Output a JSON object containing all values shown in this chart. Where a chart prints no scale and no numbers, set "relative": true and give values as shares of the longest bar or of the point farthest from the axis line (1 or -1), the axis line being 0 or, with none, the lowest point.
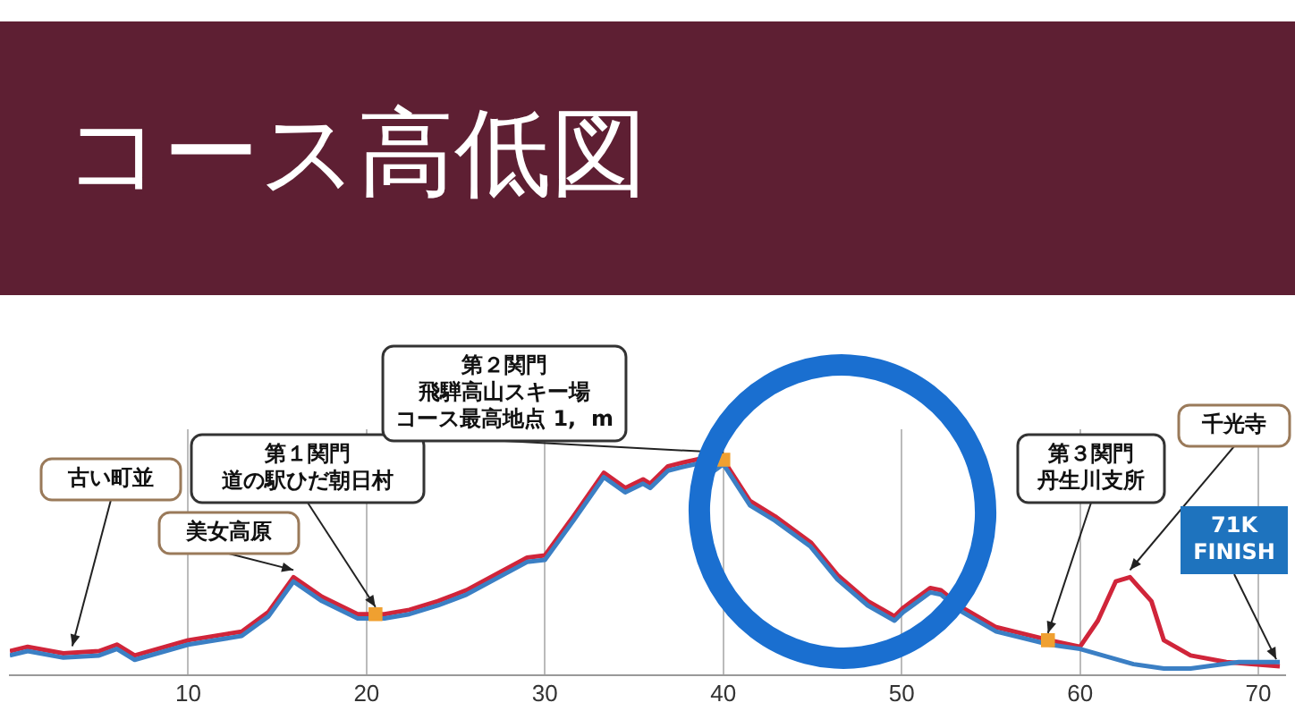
{
  "chart_data": {
    "type": "line",
    "title": "コース高低図",
    "relative": true,
    "xlim": [
      0,
      71.5
    ],
    "xticks": [
      10,
      20,
      30,
      40,
      50,
      60,
      70
    ],
    "grid": "x",
    "legend": false,
    "marker": "none",
    "line_style": "solid",
    "series": [
      {
        "color": "#3b7fc4",
        "x": [
          0,
          1,
          3,
          5,
          6,
          7,
          10,
          13,
          14.5,
          15.9,
          17.5,
          19.5,
          21,
          22.4,
          24,
          25.6,
          29,
          30,
          31.6,
          33.3,
          34.5,
          35.5,
          35.9,
          36.9,
          37.9,
          39,
          39.5,
          40,
          41.5,
          42.9,
          44.9,
          46.4,
          48.1,
          49.6,
          50.1,
          51.6,
          52.2,
          53.4,
          55.3,
          58.3,
          60,
          63,
          64.7,
          66.2,
          68.9,
          71.2
        ],
        "values": [
          0.09,
          0.11,
          0.08,
          0.09,
          0.12,
          0.07,
          0.14,
          0.18,
          0.27,
          0.43,
          0.34,
          0.26,
          0.26,
          0.28,
          0.32,
          0.37,
          0.52,
          0.53,
          0.71,
          0.91,
          0.84,
          0.88,
          0.86,
          0.94,
          0.96,
          0.98,
          0.94,
          0.97,
          0.78,
          0.71,
          0.59,
          0.44,
          0.32,
          0.25,
          0.29,
          0.38,
          0.37,
          0.29,
          0.2,
          0.14,
          0.12,
          0.05,
          0.03,
          0.03,
          0.06,
          0.06
        ]
      },
      {
        "color": "#d0253a",
        "x": [
          0,
          1,
          3,
          5,
          6,
          7,
          10,
          13,
          14.5,
          15.9,
          17.5,
          19.5,
          21,
          22.4,
          24,
          25.6,
          29,
          30,
          31.6,
          33.3,
          34.5,
          35.5,
          35.9,
          36.9,
          37.9,
          39,
          39.5,
          40,
          41.5,
          42.9,
          44.9,
          46.4,
          48.1,
          49.6,
          50.1,
          51.6,
          52.2,
          53.4,
          55.3,
          58.3,
          60,
          61,
          62,
          62.8,
          64,
          64.7,
          66.2,
          68.2,
          71.2
        ],
        "values": [
          0.11,
          0.13,
          0.1,
          0.11,
          0.14,
          0.09,
          0.16,
          0.2,
          0.29,
          0.45,
          0.36,
          0.28,
          0.28,
          0.3,
          0.34,
          0.39,
          0.54,
          0.55,
          0.73,
          0.93,
          0.86,
          0.9,
          0.88,
          0.96,
          0.98,
          1,
          0.96,
          0.99,
          0.8,
          0.73,
          0.61,
          0.46,
          0.34,
          0.27,
          0.31,
          0.4,
          0.39,
          0.31,
          0.22,
          0.16,
          0.13,
          0.25,
          0.43,
          0.45,
          0.34,
          0.16,
          0.09,
          0.06,
          0.04
        ]
      },
      {
        "type": "scatter",
        "color": "#f0a030",
        "x": [
          20.5,
          40,
          58.2
        ],
        "values": [
          0.28,
          0.99,
          0.16
        ],
        "marker": "square"
      }
    ],
    "annotations": [
      {
        "text": "古い町並",
        "x": 3.5,
        "y": 0.1
      },
      {
        "text": "美女高原",
        "x": 15.9,
        "y": 0.45
      },
      {
        "text": "第１関門道の駅ひだ朝日村",
        "x": 20.5,
        "y": 0.28
      },
      {
        "text": "第２関門飛騨高山スキー場コース最高地点 1,  m",
        "x": 40,
        "y": 0.99
      },
      {
        "text": "第３関門丹生川支所",
        "x": 58.2,
        "y": 0.16
      },
      {
        "text": "千光寺",
        "x": 62.8,
        "y": 0.45
      },
      {
        "text": "71K FINISH",
        "x": 71,
        "y": 0.04
      }
    ]
  }
}
